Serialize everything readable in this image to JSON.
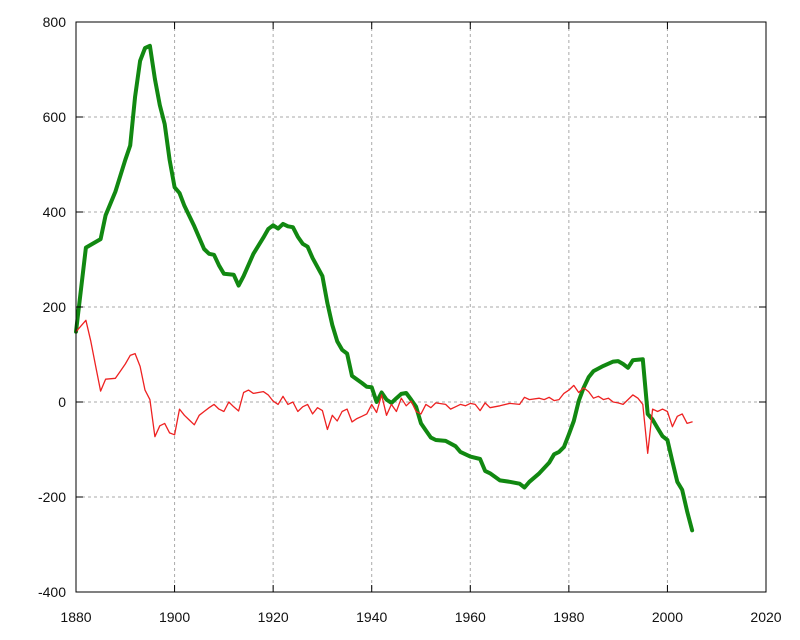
{
  "chart_data": {
    "type": "line",
    "title": "",
    "xlabel": "",
    "ylabel": "",
    "xlim": [
      1880,
      2020
    ],
    "ylim": [
      -400,
      800
    ],
    "x_ticks": [
      "1880",
      "1900",
      "1920",
      "1940",
      "1960",
      "1980",
      "2000",
      "2020"
    ],
    "y_ticks": [
      "800",
      "600",
      "400",
      "200",
      "0",
      "-200",
      "-400"
    ],
    "x_tick_values": [
      1880,
      1900,
      1920,
      1940,
      1960,
      1980,
      2000,
      2020
    ],
    "y_tick_values": [
      800,
      600,
      400,
      200,
      0,
      -200,
      -400
    ],
    "grid": true,
    "legend": "none",
    "series": [
      {
        "color": "#118811",
        "width": 4,
        "points": [
          [
            1880,
            148
          ],
          [
            1882,
            325
          ],
          [
            1885,
            343
          ],
          [
            1886,
            393
          ],
          [
            1888,
            443
          ],
          [
            1890,
            510
          ],
          [
            1891,
            540
          ],
          [
            1892,
            643
          ],
          [
            1893,
            718
          ],
          [
            1894,
            745
          ],
          [
            1895,
            750
          ],
          [
            1896,
            680
          ],
          [
            1897,
            625
          ],
          [
            1898,
            585
          ],
          [
            1899,
            510
          ],
          [
            1900,
            452
          ],
          [
            1901,
            440
          ],
          [
            1902,
            413
          ],
          [
            1904,
            370
          ],
          [
            1906,
            322
          ],
          [
            1907,
            312
          ],
          [
            1908,
            310
          ],
          [
            1909,
            288
          ],
          [
            1910,
            270
          ],
          [
            1912,
            268
          ],
          [
            1913,
            245
          ],
          [
            1914,
            265
          ],
          [
            1916,
            312
          ],
          [
            1918,
            346
          ],
          [
            1919,
            364
          ],
          [
            1920,
            372
          ],
          [
            1921,
            365
          ],
          [
            1922,
            375
          ],
          [
            1923,
            370
          ],
          [
            1924,
            368
          ],
          [
            1925,
            348
          ],
          [
            1926,
            333
          ],
          [
            1927,
            327
          ],
          [
            1928,
            303
          ],
          [
            1930,
            265
          ],
          [
            1931,
            208
          ],
          [
            1932,
            162
          ],
          [
            1933,
            128
          ],
          [
            1934,
            110
          ],
          [
            1935,
            102
          ],
          [
            1936,
            55
          ],
          [
            1938,
            40
          ],
          [
            1939,
            32
          ],
          [
            1940,
            31
          ],
          [
            1941,
            0
          ],
          [
            1942,
            20
          ],
          [
            1943,
            5
          ],
          [
            1944,
            -2
          ],
          [
            1945,
            8
          ],
          [
            1946,
            17
          ],
          [
            1947,
            19
          ],
          [
            1948,
            5
          ],
          [
            1949,
            -10
          ],
          [
            1950,
            -45
          ],
          [
            1951,
            -60
          ],
          [
            1952,
            -75
          ],
          [
            1953,
            -80
          ],
          [
            1955,
            -82
          ],
          [
            1957,
            -93
          ],
          [
            1958,
            -105
          ],
          [
            1960,
            -115
          ],
          [
            1962,
            -120
          ],
          [
            1963,
            -145
          ],
          [
            1964,
            -150
          ],
          [
            1966,
            -165
          ],
          [
            1968,
            -168
          ],
          [
            1970,
            -172
          ],
          [
            1971,
            -180
          ],
          [
            1972,
            -168
          ],
          [
            1974,
            -150
          ],
          [
            1976,
            -128
          ],
          [
            1977,
            -110
          ],
          [
            1978,
            -105
          ],
          [
            1979,
            -95
          ],
          [
            1980,
            -68
          ],
          [
            1981,
            -40
          ],
          [
            1982,
            2
          ],
          [
            1983,
            30
          ],
          [
            1984,
            52
          ],
          [
            1985,
            65
          ],
          [
            1987,
            76
          ],
          [
            1989,
            85
          ],
          [
            1990,
            86
          ],
          [
            1991,
            80
          ],
          [
            1992,
            72
          ],
          [
            1993,
            88
          ],
          [
            1995,
            90
          ],
          [
            1996,
            -25
          ],
          [
            1997,
            -37
          ],
          [
            1998,
            -55
          ],
          [
            1999,
            -72
          ],
          [
            2000,
            -80
          ],
          [
            2001,
            -125
          ],
          [
            2002,
            -168
          ],
          [
            2003,
            -185
          ],
          [
            2004,
            -230
          ],
          [
            2005,
            -270
          ]
        ]
      },
      {
        "color": "#ee2222",
        "width": 1.3,
        "points": [
          [
            1880,
            148
          ],
          [
            1882,
            172
          ],
          [
            1883,
            128
          ],
          [
            1884,
            75
          ],
          [
            1885,
            23
          ],
          [
            1886,
            48
          ],
          [
            1888,
            50
          ],
          [
            1889,
            65
          ],
          [
            1890,
            80
          ],
          [
            1891,
            98
          ],
          [
            1892,
            102
          ],
          [
            1893,
            75
          ],
          [
            1894,
            25
          ],
          [
            1895,
            5
          ],
          [
            1896,
            -73
          ],
          [
            1897,
            -50
          ],
          [
            1898,
            -45
          ],
          [
            1899,
            -65
          ],
          [
            1900,
            -69
          ],
          [
            1901,
            -15
          ],
          [
            1902,
            -28
          ],
          [
            1903,
            -38
          ],
          [
            1904,
            -48
          ],
          [
            1905,
            -28
          ],
          [
            1906,
            -20
          ],
          [
            1907,
            -12
          ],
          [
            1908,
            -5
          ],
          [
            1909,
            -15
          ],
          [
            1910,
            -20
          ],
          [
            1911,
            0
          ],
          [
            1912,
            -10
          ],
          [
            1913,
            -19
          ],
          [
            1914,
            20
          ],
          [
            1915,
            25
          ],
          [
            1916,
            18
          ],
          [
            1917,
            20
          ],
          [
            1918,
            22
          ],
          [
            1919,
            15
          ],
          [
            1920,
            2
          ],
          [
            1921,
            -5
          ],
          [
            1922,
            12
          ],
          [
            1923,
            -5
          ],
          [
            1924,
            0
          ],
          [
            1925,
            -20
          ],
          [
            1926,
            -10
          ],
          [
            1927,
            -5
          ],
          [
            1928,
            -25
          ],
          [
            1929,
            -12
          ],
          [
            1930,
            -18
          ],
          [
            1931,
            -58
          ],
          [
            1932,
            -28
          ],
          [
            1933,
            -40
          ],
          [
            1934,
            -20
          ],
          [
            1935,
            -15
          ],
          [
            1936,
            -42
          ],
          [
            1937,
            -35
          ],
          [
            1938,
            -30
          ],
          [
            1939,
            -25
          ],
          [
            1940,
            -5
          ],
          [
            1941,
            -22
          ],
          [
            1942,
            15
          ],
          [
            1943,
            -28
          ],
          [
            1944,
            -5
          ],
          [
            1945,
            -20
          ],
          [
            1946,
            8
          ],
          [
            1947,
            -8
          ],
          [
            1948,
            2
          ],
          [
            1949,
            -20
          ],
          [
            1950,
            -25
          ],
          [
            1951,
            -5
          ],
          [
            1952,
            -12
          ],
          [
            1953,
            -2
          ],
          [
            1955,
            -5
          ],
          [
            1956,
            -15
          ],
          [
            1957,
            -10
          ],
          [
            1958,
            -5
          ],
          [
            1959,
            -8
          ],
          [
            1960,
            -3
          ],
          [
            1961,
            -5
          ],
          [
            1962,
            -18
          ],
          [
            1963,
            -2
          ],
          [
            1964,
            -12
          ],
          [
            1966,
            -8
          ],
          [
            1968,
            -3
          ],
          [
            1970,
            -5
          ],
          [
            1971,
            10
          ],
          [
            1972,
            5
          ],
          [
            1974,
            8
          ],
          [
            1975,
            5
          ],
          [
            1976,
            10
          ],
          [
            1977,
            3
          ],
          [
            1978,
            5
          ],
          [
            1979,
            18
          ],
          [
            1980,
            25
          ],
          [
            1981,
            35
          ],
          [
            1982,
            20
          ],
          [
            1983,
            30
          ],
          [
            1984,
            22
          ],
          [
            1985,
            8
          ],
          [
            1986,
            12
          ],
          [
            1987,
            5
          ],
          [
            1988,
            8
          ],
          [
            1989,
            0
          ],
          [
            1990,
            -2
          ],
          [
            1991,
            -5
          ],
          [
            1992,
            5
          ],
          [
            1993,
            15
          ],
          [
            1994,
            8
          ],
          [
            1995,
            -5
          ],
          [
            1996,
            -108
          ],
          [
            1997,
            -15
          ],
          [
            1998,
            -20
          ],
          [
            1999,
            -15
          ],
          [
            2000,
            -20
          ],
          [
            2001,
            -52
          ],
          [
            2002,
            -30
          ],
          [
            2003,
            -25
          ],
          [
            2004,
            -45
          ],
          [
            2005,
            -42
          ]
        ]
      }
    ]
  }
}
